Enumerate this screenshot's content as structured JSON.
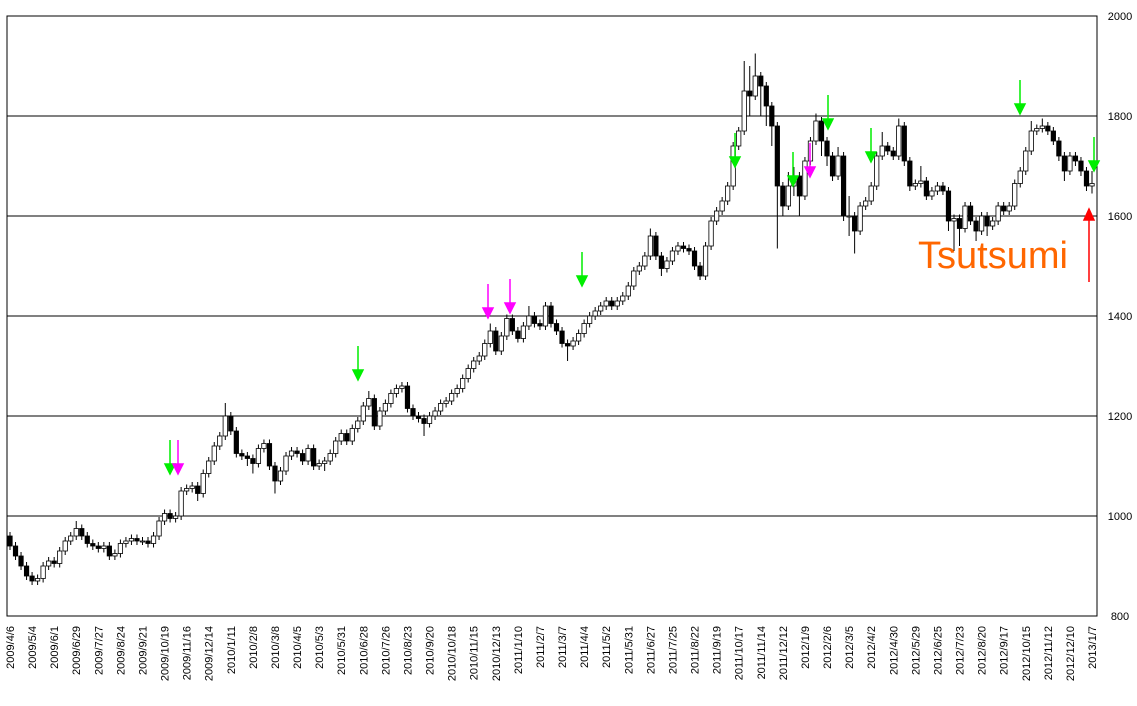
{
  "chart_data": {
    "type": "candlestick",
    "annotation": "Tsutsumi",
    "ylim": [
      800,
      2000
    ],
    "yticks": [
      800,
      1000,
      1200,
      1400,
      1600,
      1800,
      2000
    ],
    "grid": true,
    "up_color": "#ffffff",
    "down_color": "#000000",
    "categories": [
      "2009/4/6",
      null,
      null,
      null,
      "2009/5/4",
      null,
      null,
      null,
      "2009/6/1",
      null,
      null,
      null,
      "2009/6/29",
      null,
      null,
      null,
      "2009/7/27",
      null,
      null,
      null,
      "2009/8/24",
      null,
      null,
      null,
      "2009/9/21",
      null,
      null,
      null,
      "2009/10/19",
      null,
      null,
      null,
      "2009/11/16",
      null,
      null,
      null,
      "2009/12/14",
      null,
      null,
      null,
      "2010/1/11",
      null,
      null,
      null,
      "2010/2/8",
      null,
      null,
      null,
      "2010/3/8",
      null,
      null,
      null,
      "2010/4/5",
      null,
      null,
      null,
      "2010/5/3",
      null,
      null,
      null,
      "2010/5/31",
      null,
      null,
      null,
      "2010/6/28",
      null,
      null,
      null,
      "2010/7/26",
      null,
      null,
      null,
      "2010/8/23",
      null,
      null,
      null,
      "2010/9/20",
      null,
      null,
      null,
      "2010/10/18",
      null,
      null,
      null,
      "2010/11/15",
      null,
      null,
      null,
      "2010/12/13",
      null,
      null,
      null,
      "2011/1/10",
      null,
      null,
      null,
      "2011/2/7",
      null,
      null,
      null,
      "2011/3/7",
      null,
      null,
      null,
      "2011/4/4",
      null,
      null,
      null,
      "2011/5/2",
      null,
      null,
      null,
      "2011/5/31",
      null,
      null,
      null,
      "2011/6/27",
      null,
      null,
      null,
      "2011/7/25",
      null,
      null,
      null,
      "2011/8/22",
      null,
      null,
      null,
      "2011/9/19",
      null,
      null,
      null,
      "2011/10/17",
      null,
      null,
      null,
      "2011/11/14",
      null,
      null,
      null,
      "2011/12/12",
      null,
      null,
      null,
      "2012/1/9",
      null,
      null,
      null,
      "2012/2/6",
      null,
      null,
      null,
      "2012/3/5",
      null,
      null,
      null,
      "2012/4/2",
      null,
      null,
      null,
      "2012/4/30",
      null,
      null,
      null,
      "2012/5/29",
      null,
      null,
      null,
      "2012/6/25",
      null,
      null,
      null,
      "2012/7/23",
      null,
      null,
      null,
      "2012/8/20",
      null,
      null,
      null,
      "2012/9/17",
      null,
      null,
      null,
      "2012/10/15",
      null,
      null,
      null,
      "2012/11/12",
      null,
      null,
      null,
      "2012/12/10",
      null,
      null,
      null,
      "2013/1/7"
    ],
    "ohlc": [
      [
        960,
        968,
        932,
        940
      ],
      [
        940,
        948,
        912,
        920
      ],
      [
        920,
        928,
        892,
        900
      ],
      [
        900,
        908,
        872,
        880
      ],
      [
        880,
        888,
        862,
        870
      ],
      [
        870,
        883,
        862,
        875
      ],
      [
        875,
        908,
        867,
        900
      ],
      [
        900,
        918,
        892,
        910
      ],
      [
        910,
        918,
        897,
        905
      ],
      [
        905,
        938,
        897,
        930
      ],
      [
        930,
        958,
        922,
        950
      ],
      [
        950,
        968,
        942,
        960
      ],
      [
        960,
        990,
        952,
        975
      ],
      [
        975,
        983,
        952,
        960
      ],
      [
        960,
        968,
        937,
        945
      ],
      [
        945,
        953,
        932,
        940
      ],
      [
        940,
        948,
        927,
        935
      ],
      [
        935,
        948,
        927,
        940
      ],
      [
        940,
        948,
        912,
        920
      ],
      [
        920,
        933,
        912,
        925
      ],
      [
        925,
        953,
        917,
        945
      ],
      [
        945,
        958,
        937,
        950
      ],
      [
        950,
        963,
        942,
        955
      ],
      [
        955,
        963,
        942,
        950
      ],
      [
        950,
        958,
        942,
        950
      ],
      [
        950,
        958,
        937,
        945
      ],
      [
        945,
        968,
        937,
        960
      ],
      [
        960,
        998,
        952,
        990
      ],
      [
        990,
        1013,
        982,
        1005
      ],
      [
        1005,
        1013,
        987,
        995
      ],
      [
        995,
        1008,
        987,
        1000
      ],
      [
        1000,
        1058,
        992,
        1050
      ],
      [
        1050,
        1063,
        1042,
        1055
      ],
      [
        1055,
        1068,
        1047,
        1060
      ],
      [
        1060,
        1068,
        1030,
        1045
      ],
      [
        1045,
        1093,
        1037,
        1085
      ],
      [
        1085,
        1118,
        1077,
        1110
      ],
      [
        1110,
        1148,
        1102,
        1140
      ],
      [
        1140,
        1168,
        1132,
        1160
      ],
      [
        1160,
        1226,
        1152,
        1200
      ],
      [
        1200,
        1208,
        1162,
        1170
      ],
      [
        1170,
        1178,
        1117,
        1125
      ],
      [
        1125,
        1133,
        1112,
        1120
      ],
      [
        1120,
        1128,
        1100,
        1115
      ],
      [
        1115,
        1123,
        1085,
        1105
      ],
      [
        1105,
        1143,
        1097,
        1135
      ],
      [
        1135,
        1153,
        1127,
        1145
      ],
      [
        1145,
        1153,
        1092,
        1100
      ],
      [
        1100,
        1108,
        1045,
        1070
      ],
      [
        1070,
        1098,
        1062,
        1090
      ],
      [
        1090,
        1128,
        1082,
        1120
      ],
      [
        1120,
        1138,
        1112,
        1130
      ],
      [
        1130,
        1138,
        1117,
        1125
      ],
      [
        1125,
        1133,
        1102,
        1110
      ],
      [
        1110,
        1143,
        1102,
        1135
      ],
      [
        1135,
        1143,
        1092,
        1100
      ],
      [
        1100,
        1113,
        1092,
        1105
      ],
      [
        1105,
        1118,
        1090,
        1110
      ],
      [
        1110,
        1133,
        1102,
        1125
      ],
      [
        1125,
        1158,
        1117,
        1150
      ],
      [
        1150,
        1173,
        1142,
        1165
      ],
      [
        1165,
        1173,
        1142,
        1150
      ],
      [
        1150,
        1183,
        1142,
        1175
      ],
      [
        1175,
        1198,
        1167,
        1190
      ],
      [
        1190,
        1228,
        1182,
        1220
      ],
      [
        1220,
        1250,
        1212,
        1235
      ],
      [
        1235,
        1243,
        1172,
        1180
      ],
      [
        1180,
        1218,
        1172,
        1210
      ],
      [
        1210,
        1233,
        1202,
        1225
      ],
      [
        1225,
        1253,
        1217,
        1245
      ],
      [
        1245,
        1263,
        1237,
        1255
      ],
      [
        1255,
        1268,
        1247,
        1260
      ],
      [
        1260,
        1268,
        1207,
        1215
      ],
      [
        1215,
        1223,
        1192,
        1200
      ],
      [
        1200,
        1208,
        1187,
        1195
      ],
      [
        1195,
        1203,
        1160,
        1185
      ],
      [
        1185,
        1208,
        1177,
        1200
      ],
      [
        1200,
        1218,
        1192,
        1210
      ],
      [
        1210,
        1233,
        1202,
        1225
      ],
      [
        1225,
        1238,
        1217,
        1230
      ],
      [
        1230,
        1253,
        1222,
        1245
      ],
      [
        1245,
        1263,
        1237,
        1255
      ],
      [
        1255,
        1283,
        1247,
        1275
      ],
      [
        1275,
        1303,
        1267,
        1295
      ],
      [
        1295,
        1318,
        1287,
        1310
      ],
      [
        1310,
        1328,
        1302,
        1320
      ],
      [
        1320,
        1353,
        1312,
        1345
      ],
      [
        1345,
        1385,
        1337,
        1370
      ],
      [
        1370,
        1378,
        1322,
        1330
      ],
      [
        1330,
        1368,
        1322,
        1360
      ],
      [
        1360,
        1403,
        1352,
        1395
      ],
      [
        1395,
        1403,
        1362,
        1370
      ],
      [
        1370,
        1378,
        1347,
        1355
      ],
      [
        1355,
        1388,
        1347,
        1380
      ],
      [
        1380,
        1420,
        1372,
        1400
      ],
      [
        1400,
        1408,
        1377,
        1385
      ],
      [
        1385,
        1393,
        1372,
        1380
      ],
      [
        1380,
        1428,
        1372,
        1420
      ],
      [
        1420,
        1428,
        1377,
        1385
      ],
      [
        1385,
        1393,
        1362,
        1370
      ],
      [
        1370,
        1378,
        1337,
        1345
      ],
      [
        1345,
        1353,
        1310,
        1340
      ],
      [
        1340,
        1358,
        1332,
        1350
      ],
      [
        1350,
        1373,
        1342,
        1365
      ],
      [
        1365,
        1393,
        1357,
        1385
      ],
      [
        1385,
        1408,
        1377,
        1400
      ],
      [
        1400,
        1418,
        1392,
        1410
      ],
      [
        1410,
        1428,
        1402,
        1420
      ],
      [
        1420,
        1438,
        1412,
        1430
      ],
      [
        1430,
        1438,
        1412,
        1420
      ],
      [
        1420,
        1438,
        1412,
        1430
      ],
      [
        1430,
        1448,
        1422,
        1440
      ],
      [
        1440,
        1468,
        1432,
        1460
      ],
      [
        1460,
        1498,
        1452,
        1490
      ],
      [
        1490,
        1508,
        1482,
        1500
      ],
      [
        1500,
        1528,
        1492,
        1520
      ],
      [
        1520,
        1575,
        1512,
        1560
      ],
      [
        1560,
        1568,
        1512,
        1520
      ],
      [
        1520,
        1528,
        1480,
        1495
      ],
      [
        1495,
        1518,
        1487,
        1510
      ],
      [
        1510,
        1538,
        1502,
        1530
      ],
      [
        1530,
        1548,
        1522,
        1540
      ],
      [
        1540,
        1548,
        1527,
        1535
      ],
      [
        1535,
        1543,
        1522,
        1530
      ],
      [
        1530,
        1538,
        1492,
        1500
      ],
      [
        1500,
        1508,
        1472,
        1480
      ],
      [
        1480,
        1548,
        1472,
        1540
      ],
      [
        1540,
        1598,
        1532,
        1590
      ],
      [
        1590,
        1618,
        1582,
        1610
      ],
      [
        1610,
        1638,
        1602,
        1630
      ],
      [
        1630,
        1668,
        1622,
        1660
      ],
      [
        1660,
        1748,
        1652,
        1740
      ],
      [
        1740,
        1778,
        1732,
        1770
      ],
      [
        1770,
        1910,
        1762,
        1850
      ],
      [
        1850,
        1900,
        1800,
        1840
      ],
      [
        1840,
        1925,
        1832,
        1880
      ],
      [
        1880,
        1888,
        1800,
        1860
      ],
      [
        1860,
        1868,
        1780,
        1820
      ],
      [
        1820,
        1828,
        1740,
        1780
      ],
      [
        1780,
        1788,
        1535,
        1660
      ],
      [
        1660,
        1668,
        1600,
        1620
      ],
      [
        1620,
        1688,
        1612,
        1660
      ],
      [
        1660,
        1698,
        1640,
        1680
      ],
      [
        1680,
        1688,
        1600,
        1640
      ],
      [
        1640,
        1718,
        1632,
        1710
      ],
      [
        1710,
        1758,
        1702,
        1750
      ],
      [
        1750,
        1805,
        1742,
        1790
      ],
      [
        1790,
        1798,
        1720,
        1750
      ],
      [
        1750,
        1758,
        1700,
        1720
      ],
      [
        1720,
        1728,
        1670,
        1680
      ],
      [
        1680,
        1738,
        1672,
        1720
      ],
      [
        1720,
        1728,
        1590,
        1600
      ],
      [
        1600,
        1640,
        1560,
        1600
      ],
      [
        1600,
        1608,
        1525,
        1570
      ],
      [
        1570,
        1628,
        1562,
        1620
      ],
      [
        1620,
        1638,
        1612,
        1630
      ],
      [
        1630,
        1668,
        1622,
        1660
      ],
      [
        1660,
        1728,
        1652,
        1720
      ],
      [
        1720,
        1768,
        1712,
        1740
      ],
      [
        1740,
        1748,
        1722,
        1730
      ],
      [
        1730,
        1738,
        1712,
        1720
      ],
      [
        1720,
        1795,
        1712,
        1780
      ],
      [
        1780,
        1788,
        1700,
        1710
      ],
      [
        1710,
        1718,
        1650,
        1660
      ],
      [
        1660,
        1673,
        1652,
        1665
      ],
      [
        1665,
        1700,
        1657,
        1670
      ],
      [
        1670,
        1678,
        1632,
        1640
      ],
      [
        1640,
        1658,
        1632,
        1650
      ],
      [
        1650,
        1668,
        1642,
        1660
      ],
      [
        1660,
        1668,
        1642,
        1650
      ],
      [
        1650,
        1658,
        1570,
        1590
      ],
      [
        1590,
        1603,
        1530,
        1595
      ],
      [
        1595,
        1603,
        1540,
        1575
      ],
      [
        1575,
        1628,
        1567,
        1620
      ],
      [
        1620,
        1628,
        1582,
        1590
      ],
      [
        1590,
        1598,
        1550,
        1570
      ],
      [
        1570,
        1608,
        1562,
        1600
      ],
      [
        1600,
        1608,
        1560,
        1580
      ],
      [
        1580,
        1598,
        1572,
        1590
      ],
      [
        1590,
        1628,
        1582,
        1620
      ],
      [
        1620,
        1628,
        1602,
        1610
      ],
      [
        1610,
        1628,
        1602,
        1620
      ],
      [
        1620,
        1673,
        1612,
        1665
      ],
      [
        1665,
        1698,
        1657,
        1690
      ],
      [
        1690,
        1738,
        1682,
        1730
      ],
      [
        1730,
        1790,
        1722,
        1770
      ],
      [
        1770,
        1783,
        1762,
        1775
      ],
      [
        1775,
        1795,
        1767,
        1780
      ],
      [
        1780,
        1788,
        1762,
        1770
      ],
      [
        1770,
        1778,
        1742,
        1750
      ],
      [
        1750,
        1758,
        1710,
        1720
      ],
      [
        1720,
        1728,
        1670,
        1690
      ],
      [
        1690,
        1728,
        1682,
        1720
      ],
      [
        1720,
        1728,
        1700,
        1710
      ],
      [
        1710,
        1718,
        1680,
        1690
      ],
      [
        1690,
        1698,
        1650,
        1660
      ],
      [
        1660,
        1690,
        1645,
        1665
      ]
    ]
  }
}
